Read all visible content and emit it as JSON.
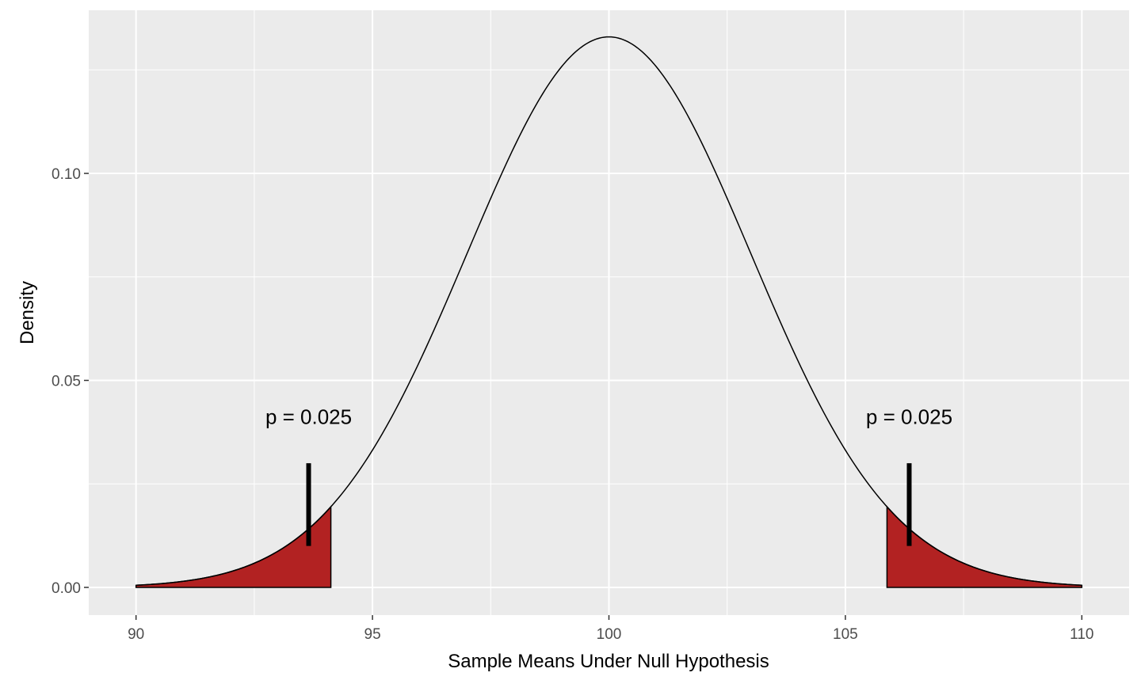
{
  "chart_data": {
    "type": "area",
    "xlabel": "Sample Means Under Null Hypothesis",
    "ylabel": "Density",
    "xlim": [
      89,
      111
    ],
    "ylim": [
      -0.0067,
      0.1394
    ],
    "x_ticks": [
      90,
      95,
      100,
      105,
      110
    ],
    "x_tick_labels": [
      "90",
      "95",
      "100",
      "105",
      "110"
    ],
    "y_ticks": [
      0.0,
      0.05,
      0.1
    ],
    "y_tick_labels": [
      "0.00",
      "0.05",
      "0.10"
    ],
    "grid": true,
    "series": [
      {
        "kind": "density-curve",
        "distribution": "normal",
        "mean": 100,
        "sd": 3,
        "x_range": [
          90,
          110
        ],
        "color": "#000000"
      },
      {
        "kind": "shaded-tail",
        "x_range": [
          90,
          94.12
        ],
        "fill": "#b22222"
      },
      {
        "kind": "shaded-tail",
        "x_range": [
          105.88,
          110
        ],
        "fill": "#b22222"
      }
    ],
    "annotations": [
      {
        "text": "p = 0.025",
        "x": 93.65,
        "y": 0.0395
      },
      {
        "text": "p = 0.025",
        "x": 106.35,
        "y": 0.0395
      }
    ],
    "markers": [
      {
        "x": 93.65,
        "y0": 0.01,
        "y1": 0.03
      },
      {
        "x": 106.35,
        "y0": 0.01,
        "y1": 0.03
      }
    ],
    "colors": {
      "panel": "#ebebeb",
      "grid": "#ffffff",
      "tail_fill": "#b22222",
      "curve": "#000000"
    }
  }
}
